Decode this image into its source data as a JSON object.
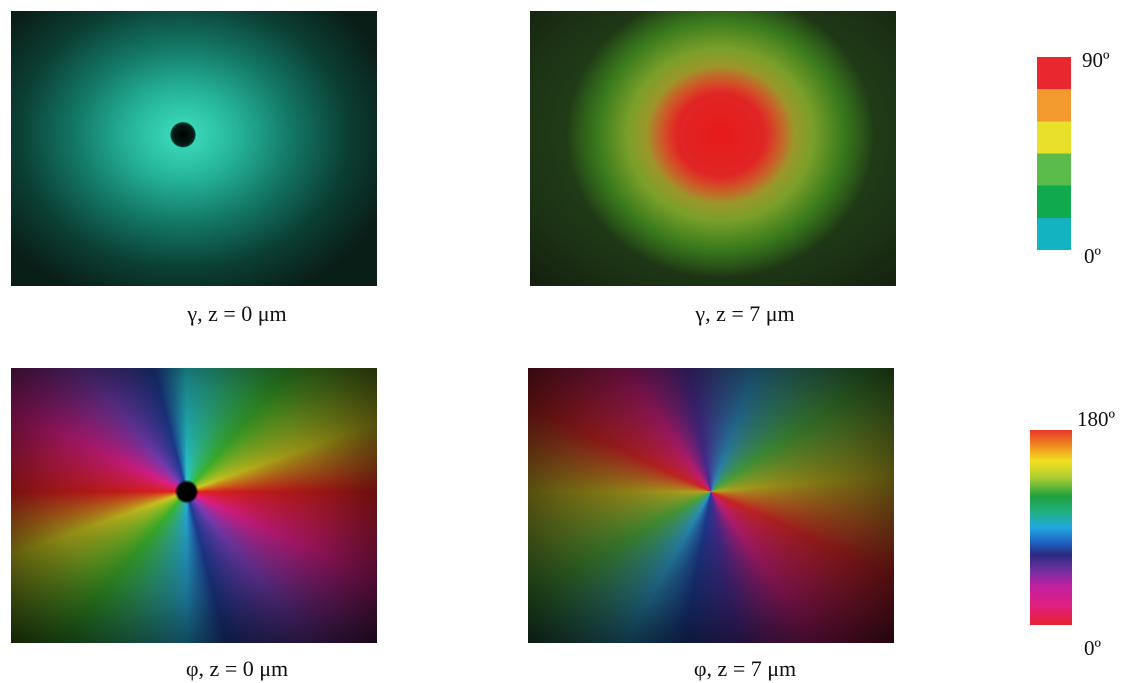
{
  "panels": [
    {
      "caption": "γ, z = 0 μm"
    },
    {
      "caption": "γ, z = 7 μm"
    },
    {
      "caption": "φ, z = 0 μm"
    },
    {
      "caption": "φ, z = 7 μm"
    }
  ],
  "colorbars": [
    {
      "max_label": "90º",
      "min_label": "0º"
    },
    {
      "max_label": "180º",
      "min_label": "0º"
    }
  ]
}
